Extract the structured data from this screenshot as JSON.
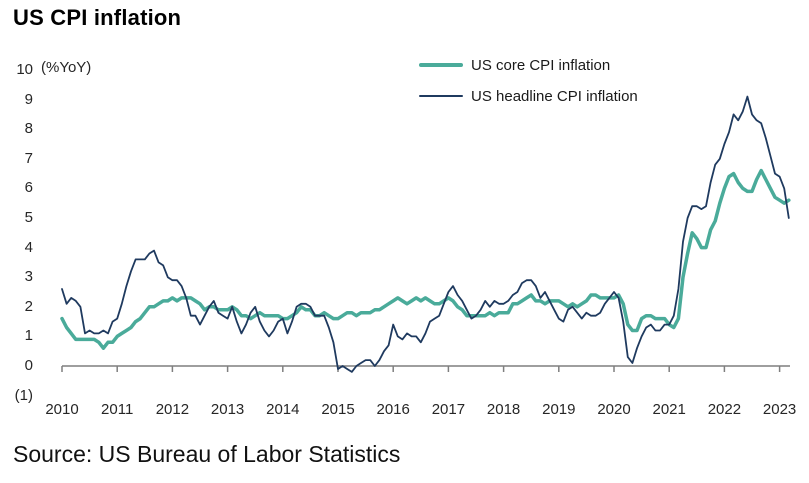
{
  "title": "US CPI inflation",
  "y_unit_label": "(%YoY)",
  "source": "Source: US Bureau of Labor Statistics",
  "legend": {
    "core_label": "US core CPI inflation",
    "headline_label": "US headline CPI inflation"
  },
  "chart_data": {
    "type": "line",
    "title": "US CPI inflation",
    "ylabel": "(%YoY)",
    "xlabel": "",
    "grid": false,
    "legend_position": "inside-top-right",
    "axis_color": "#7f7f7f",
    "ylim": [
      -1,
      10
    ],
    "x_frequency": "monthly",
    "x_start": "2010-01",
    "x_end": "2023-03",
    "x_years": [
      "2010",
      "2011",
      "2012",
      "2013",
      "2014",
      "2015",
      "2016",
      "2017",
      "2018",
      "2019",
      "2020",
      "2021",
      "2022",
      "2023"
    ],
    "y_ticks": [
      {
        "value": 10,
        "label": "10"
      },
      {
        "value": 9,
        "label": "9"
      },
      {
        "value": 8,
        "label": "8"
      },
      {
        "value": 7,
        "label": "7"
      },
      {
        "value": 6,
        "label": "6"
      },
      {
        "value": 5,
        "label": "5"
      },
      {
        "value": 4,
        "label": "4"
      },
      {
        "value": 3,
        "label": "3"
      },
      {
        "value": 2,
        "label": "2"
      },
      {
        "value": 1,
        "label": "1"
      },
      {
        "value": 0,
        "label": "0"
      },
      {
        "value": -1,
        "label": "(1)"
      }
    ],
    "series": [
      {
        "name": "US core CPI inflation",
        "color": "#4aab9a",
        "stroke_width": 3.5,
        "values": [
          1.6,
          1.3,
          1.1,
          0.9,
          0.9,
          0.9,
          0.9,
          0.9,
          0.8,
          0.6,
          0.8,
          0.8,
          1.0,
          1.1,
          1.2,
          1.3,
          1.5,
          1.6,
          1.8,
          2.0,
          2.0,
          2.1,
          2.2,
          2.2,
          2.3,
          2.2,
          2.3,
          2.3,
          2.3,
          2.2,
          2.1,
          1.9,
          2.0,
          2.0,
          1.9,
          1.9,
          1.9,
          2.0,
          1.9,
          1.7,
          1.7,
          1.6,
          1.7,
          1.8,
          1.7,
          1.7,
          1.7,
          1.7,
          1.6,
          1.6,
          1.7,
          1.8,
          2.0,
          1.9,
          1.9,
          1.7,
          1.7,
          1.8,
          1.7,
          1.6,
          1.6,
          1.7,
          1.8,
          1.8,
          1.7,
          1.8,
          1.8,
          1.8,
          1.9,
          1.9,
          2.0,
          2.1,
          2.2,
          2.3,
          2.2,
          2.1,
          2.2,
          2.3,
          2.2,
          2.3,
          2.2,
          2.1,
          2.1,
          2.2,
          2.3,
          2.2,
          2.0,
          1.9,
          1.7,
          1.7,
          1.7,
          1.7,
          1.7,
          1.8,
          1.7,
          1.8,
          1.8,
          1.8,
          2.1,
          2.1,
          2.2,
          2.3,
          2.4,
          2.2,
          2.2,
          2.1,
          2.2,
          2.2,
          2.2,
          2.1,
          2.0,
          2.1,
          2.0,
          2.1,
          2.2,
          2.4,
          2.4,
          2.3,
          2.3,
          2.3,
          2.3,
          2.4,
          2.1,
          1.4,
          1.2,
          1.2,
          1.6,
          1.7,
          1.7,
          1.6,
          1.6,
          1.6,
          1.4,
          1.3,
          1.6,
          3.0,
          3.8,
          4.5,
          4.3,
          4.0,
          4.0,
          4.6,
          4.9,
          5.5,
          6.0,
          6.4,
          6.5,
          6.2,
          6.0,
          5.9,
          5.9,
          6.3,
          6.6,
          6.3,
          6.0,
          5.7,
          5.6,
          5.5,
          5.6
        ]
      },
      {
        "name": "US headline CPI inflation",
        "color": "#1f3a5f",
        "stroke_width": 1.8,
        "values": [
          2.6,
          2.1,
          2.3,
          2.2,
          2.0,
          1.1,
          1.2,
          1.1,
          1.1,
          1.2,
          1.1,
          1.5,
          1.6,
          2.1,
          2.7,
          3.2,
          3.6,
          3.6,
          3.6,
          3.8,
          3.9,
          3.5,
          3.4,
          3.0,
          2.9,
          2.9,
          2.7,
          2.3,
          1.7,
          1.7,
          1.4,
          1.7,
          2.0,
          2.2,
          1.8,
          1.7,
          1.6,
          2.0,
          1.5,
          1.1,
          1.4,
          1.8,
          2.0,
          1.5,
          1.2,
          1.0,
          1.2,
          1.5,
          1.6,
          1.1,
          1.5,
          2.0,
          2.1,
          2.1,
          2.0,
          1.7,
          1.7,
          1.7,
          1.3,
          0.8,
          -0.1,
          0.0,
          -0.1,
          -0.2,
          0.0,
          0.1,
          0.2,
          0.2,
          0.0,
          0.2,
          0.5,
          0.7,
          1.4,
          1.0,
          0.9,
          1.1,
          1.0,
          1.0,
          0.8,
          1.1,
          1.5,
          1.6,
          1.7,
          2.1,
          2.5,
          2.7,
          2.4,
          2.2,
          1.9,
          1.6,
          1.7,
          1.9,
          2.2,
          2.0,
          2.2,
          2.1,
          2.1,
          2.2,
          2.4,
          2.5,
          2.8,
          2.9,
          2.9,
          2.7,
          2.3,
          2.5,
          2.2,
          1.9,
          1.6,
          1.5,
          1.9,
          2.0,
          1.8,
          1.6,
          1.8,
          1.7,
          1.7,
          1.8,
          2.1,
          2.3,
          2.5,
          2.3,
          1.5,
          0.3,
          0.1,
          0.6,
          1.0,
          1.3,
          1.4,
          1.2,
          1.2,
          1.4,
          1.4,
          1.7,
          2.6,
          4.2,
          5.0,
          5.4,
          5.4,
          5.3,
          5.4,
          6.2,
          6.8,
          7.0,
          7.5,
          7.9,
          8.5,
          8.3,
          8.6,
          9.1,
          8.5,
          8.3,
          8.2,
          7.7,
          7.1,
          6.5,
          6.4,
          6.0,
          5.0
        ]
      }
    ]
  }
}
